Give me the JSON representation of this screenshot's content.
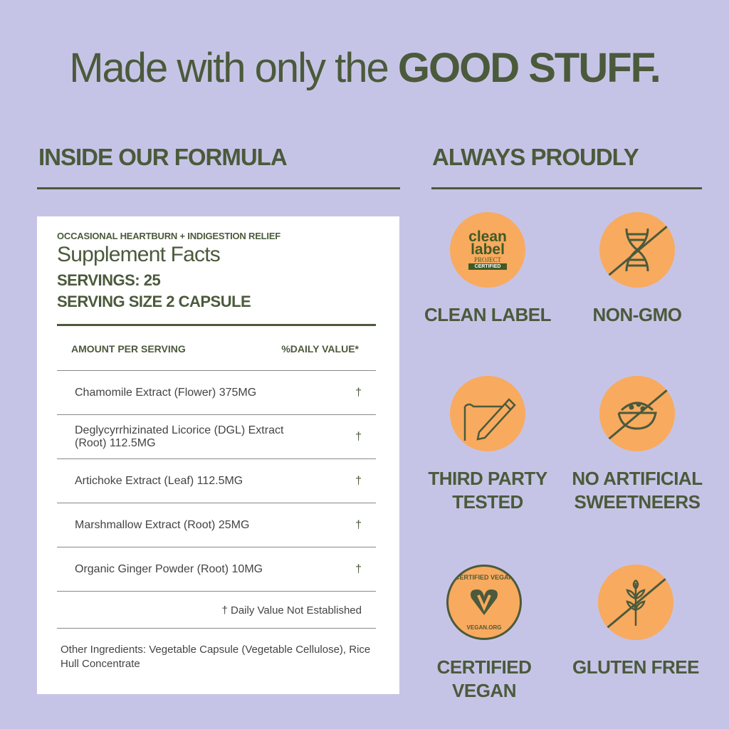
{
  "headline": {
    "regular": "Made with only the ",
    "bold": "GOOD STUFF."
  },
  "left_heading": "INSIDE OUR FORMULA",
  "right_heading": "ALWAYS PROUDLY",
  "facts": {
    "subtitle": "OCCASIONAL HEARTBURN + INDIGESTION RELIEF",
    "title": "Supplement Facts",
    "servings": "SERVINGS: 25",
    "serving_size": "SERVING SIZE 2 CAPSULE",
    "col_amount": "AMOUNT PER SERVING",
    "col_dv": "%DAILY VALUE*",
    "rows": [
      {
        "name": "Chamomile Extract (Flower) 375MG",
        "dv": "†"
      },
      {
        "name": "Deglycyrrhizinated Licorice (DGL) Extract (Root) 112.5MG",
        "dv": "†"
      },
      {
        "name": "Artichoke Extract (Leaf) 112.5MG",
        "dv": "†"
      },
      {
        "name": "Marshmallow Extract (Root) 25MG",
        "dv": "†"
      },
      {
        "name": "Organic Ginger Powder (Root) 10MG",
        "dv": "†"
      }
    ],
    "note": "† Daily Value Not Established",
    "other": "Other Ingredients: Vegetable Capsule (Vegetable Cellulose), Rice Hull Concentrate"
  },
  "badges": [
    {
      "label": "CLEAN LABEL",
      "icon": "clean-label-project-logo",
      "logo_text": [
        "clean",
        "label",
        "PROJECT",
        "CERTIFIED"
      ]
    },
    {
      "label": "NON-GMO",
      "icon": "dna-crossed-icon"
    },
    {
      "label": "THIRD PARTY TESTED",
      "icon": "document-pencil-icon"
    },
    {
      "label": "NO ARTIFICIAL SWEETNEERS",
      "icon": "sugar-bowl-crossed-icon"
    },
    {
      "label": "CERTIFIED VEGAN",
      "icon": "certified-vegan-logo",
      "logo_text": [
        "CERTIFIED VEGAN",
        "VEGAN.ORG"
      ]
    },
    {
      "label": "GLUTEN FREE",
      "icon": "wheat-crossed-icon"
    }
  ],
  "colors": {
    "background": "#c6c4e6",
    "text": "#4b5a3b",
    "badge": "#f8aa5f"
  }
}
